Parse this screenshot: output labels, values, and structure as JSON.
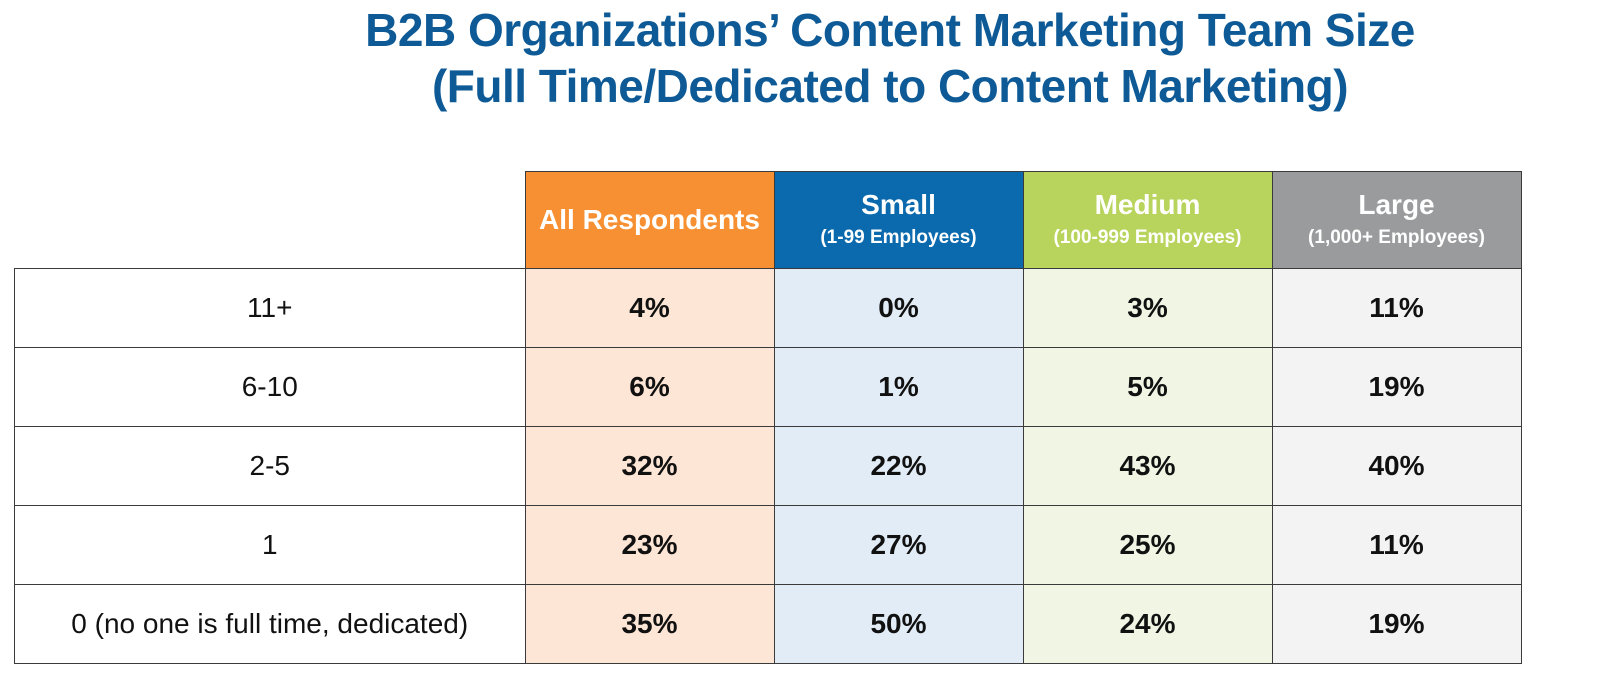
{
  "chart_data": {
    "type": "table",
    "title_lines": [
      "B2B Organizations’ Content Marketing Team Size",
      "(Full Time/Dedicated to Content Marketing)"
    ],
    "columns": [
      {
        "name": "All Respondents",
        "subtitle": "",
        "color": "#f79032"
      },
      {
        "name": "Small",
        "subtitle": "(1-99 Employees)",
        "color": "#0b69ad"
      },
      {
        "name": "Medium",
        "subtitle": "(100-999 Employees)",
        "color": "#b8d45c"
      },
      {
        "name": "Large",
        "subtitle": "(1,000+ Employees)",
        "color": "#9a9b9c"
      }
    ],
    "rows": [
      {
        "label": "11+",
        "values": [
          "4%",
          "0%",
          "3%",
          "11%"
        ]
      },
      {
        "label": "6-10",
        "values": [
          "6%",
          "1%",
          "5%",
          "19%"
        ]
      },
      {
        "label": "2-5",
        "values": [
          "32%",
          "22%",
          "43%",
          "40%"
        ]
      },
      {
        "label": "1",
        "values": [
          "23%",
          "27%",
          "25%",
          "11%"
        ]
      },
      {
        "label": "0 (no one is full time, dedicated)",
        "values": [
          "35%",
          "50%",
          "24%",
          "19%"
        ]
      }
    ],
    "cell_tints": [
      "#fde6d5",
      "#e1ecf6",
      "#f1f6e4",
      "#f3f3f3"
    ]
  }
}
